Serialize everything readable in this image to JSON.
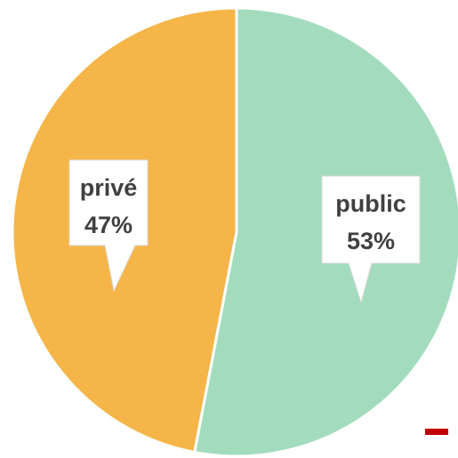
{
  "chart_data": {
    "type": "pie",
    "title": "",
    "categories": [
      "privé",
      "public"
    ],
    "values": [
      47,
      53
    ],
    "data_labels": [
      {
        "name": "privé",
        "value": "47%"
      },
      {
        "name": "public",
        "value": "53%"
      }
    ],
    "colors": [
      "#F5B548",
      "#A3DCBD"
    ],
    "legend": "none",
    "grid": false
  },
  "colors": {
    "private_slice": "#F5B548",
    "public_slice": "#A3DCBD",
    "slice_border": "#ffffff",
    "callout_fill": "#ffffff",
    "callout_border": "#d9d9d9",
    "label_text": "#404040",
    "corner_marker": "#C00000"
  }
}
